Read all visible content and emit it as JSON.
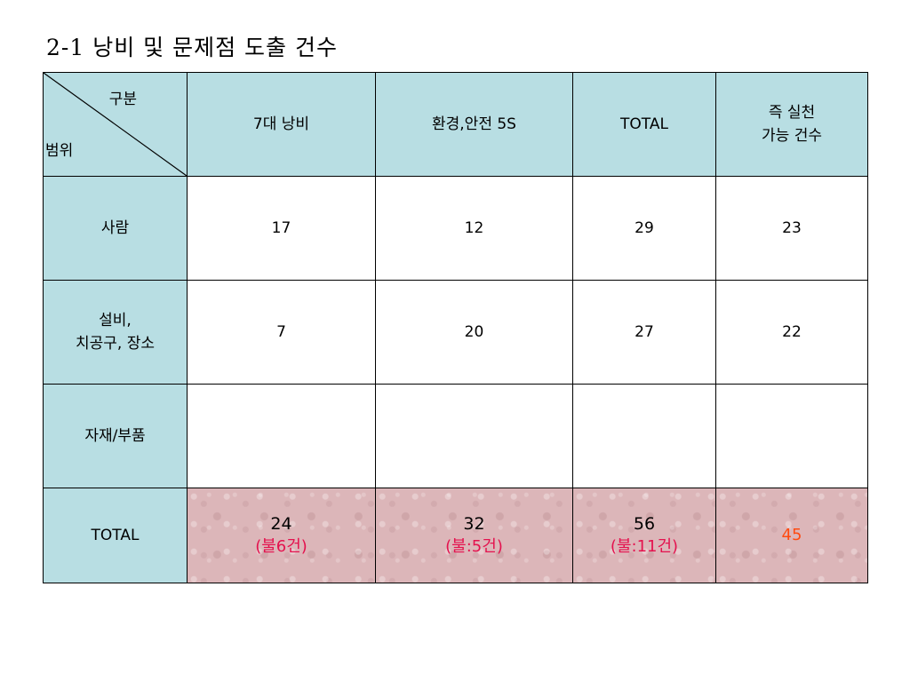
{
  "title": "2-1 낭비 및 문제점 도출 건수",
  "table": {
    "corner_top": "구분",
    "corner_bottom": "범위",
    "columns": [
      "7대 낭비",
      "환경,안전 5S",
      "TOTAL"
    ],
    "column_last": [
      "즉 실천",
      "가능 건수"
    ],
    "rows": [
      {
        "label": [
          "사람"
        ],
        "values": [
          "17",
          "12",
          "29",
          "23"
        ]
      },
      {
        "label": [
          "설비,",
          "치공구, 장소"
        ],
        "values": [
          "7",
          "20",
          "27",
          "22"
        ]
      },
      {
        "label": [
          "자재/부품"
        ],
        "values": [
          "",
          "",
          "",
          ""
        ]
      }
    ],
    "total": {
      "label": "TOTAL",
      "cells": [
        {
          "value": "24",
          "note": "(불6건)"
        },
        {
          "value": "32",
          "note": "(불:5건)"
        },
        {
          "value": "56",
          "note": "(불:11건)"
        }
      ],
      "last": "45"
    }
  },
  "colors": {
    "header_bg": "#b8dee3",
    "total_bg": "#dcb6b9",
    "note_text": "#e4124e",
    "total_last_text": "#ff4a10"
  }
}
